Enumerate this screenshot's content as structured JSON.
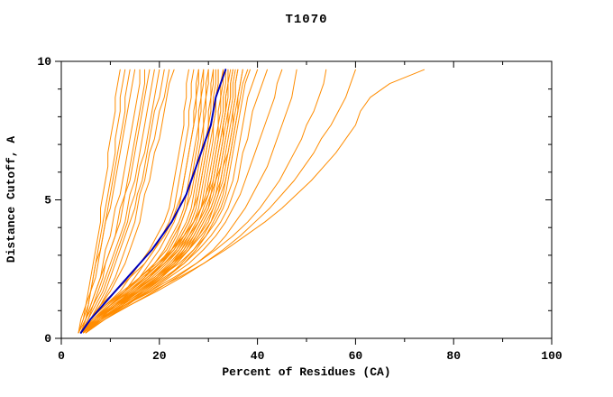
{
  "colors": {
    "background": "#ffffff",
    "frame": "#000000",
    "model": "#ff8c00",
    "highlight": "#0000bb"
  },
  "axes": {
    "x": {
      "label": "Percent of Residues (CA)",
      "min": 0,
      "max": 100,
      "major_ticks": [
        0,
        20,
        40,
        60,
        80,
        100
      ],
      "minor_step": 10
    },
    "y": {
      "label": "Distance Cutoff, A",
      "min": 0,
      "max": 10,
      "major_ticks": [
        0,
        5,
        10
      ],
      "minor_step": 1
    }
  },
  "chart_data": {
    "type": "line",
    "title": "T1070",
    "xlabel": "Percent of Residues (CA)",
    "ylabel": "Distance Cutoff, A",
    "xlim": [
      0,
      100
    ],
    "ylim": [
      0,
      10
    ],
    "grid": false,
    "legend": "none",
    "description": "CASP-style cumulative distance plot: many orange model curves, one dark blue highlighted curve",
    "y_values": [
      0.2,
      0.7,
      1.2,
      1.7,
      2.2,
      2.7,
      3.2,
      3.7,
      4.2,
      4.7,
      5.2,
      5.7,
      6.2,
      6.7,
      7.2,
      7.7,
      8.2,
      8.7,
      9.2,
      9.7
    ],
    "highlight_x": [
      4,
      6,
      8.5,
      11,
      13.5,
      16,
      18.5,
      20.5,
      22.5,
      24,
      25.5,
      26.5,
      27.5,
      28.5,
      29.5,
      30.5,
      31,
      31.5,
      32.5,
      33.5
    ],
    "models_x": [
      [
        3.5,
        4.5,
        5,
        5.5,
        6,
        6.5,
        7,
        7.5,
        8,
        8,
        8.5,
        9,
        9.5,
        9.5,
        10,
        10.5,
        11,
        11,
        11.5,
        12
      ],
      [
        4,
        5,
        5.5,
        6,
        7,
        7.5,
        8,
        8.5,
        9,
        9.5,
        10,
        10.5,
        11,
        11.5,
        12,
        12.5,
        13,
        13,
        13.5,
        14
      ],
      [
        3.5,
        4,
        5,
        6,
        6.5,
        7,
        8,
        8.5,
        9,
        10,
        10.5,
        11,
        11.5,
        12,
        12.5,
        13,
        13.5,
        14,
        14.5,
        15
      ],
      [
        4,
        5,
        6,
        7,
        8,
        8.5,
        9,
        10,
        10.5,
        11,
        12,
        12.5,
        13,
        13.5,
        14,
        14.5,
        15,
        15.5,
        16,
        16
      ],
      [
        4,
        5.5,
        6.5,
        7.5,
        8.5,
        9,
        10,
        11,
        11.5,
        12,
        13,
        13.5,
        14,
        14.5,
        15,
        15.5,
        16,
        16.5,
        17,
        17
      ],
      [
        3.5,
        5,
        6,
        7,
        8,
        9,
        10,
        11,
        12,
        12.5,
        13,
        14,
        14.5,
        15,
        15.5,
        16,
        16.5,
        17,
        17.5,
        18
      ],
      [
        4,
        5,
        6.5,
        8,
        9,
        10,
        11,
        12,
        13,
        13.5,
        14,
        15,
        15.5,
        16,
        16.5,
        17,
        17.5,
        18,
        18.5,
        19
      ],
      [
        4,
        5.5,
        7,
        8.5,
        9.5,
        10.5,
        11.5,
        12.5,
        13.5,
        14,
        15,
        15.5,
        16,
        17,
        17.5,
        18,
        18.5,
        19,
        19.5,
        20
      ],
      [
        4.5,
        6,
        7.5,
        9,
        10,
        11,
        12,
        13,
        14,
        15,
        15.5,
        16.5,
        17,
        17.5,
        18,
        18.5,
        19,
        20,
        20.5,
        21
      ],
      [
        4,
        6,
        8,
        9.5,
        11,
        12,
        13,
        14,
        15,
        15.5,
        16,
        17,
        17.5,
        18,
        19,
        19.5,
        20,
        21,
        21.5,
        22
      ],
      [
        3.5,
        4.5,
        5.5,
        6,
        6.5,
        7,
        7.5,
        8,
        8.5,
        9,
        9.5,
        10,
        10.5,
        11,
        11,
        11.5,
        12,
        12,
        12.5,
        13
      ],
      [
        4,
        6,
        8,
        10,
        11.5,
        13,
        14,
        15,
        16,
        16.5,
        17,
        18,
        18.5,
        19,
        20,
        20.5,
        21,
        21.5,
        22,
        23
      ],
      [
        4,
        6,
        9,
        12,
        14,
        16,
        18,
        19.5,
        21,
        22,
        22.5,
        23,
        23.5,
        24,
        24.5,
        25,
        25,
        25.5,
        25.5,
        26
      ],
      [
        4,
        7,
        10,
        13,
        15,
        17,
        19,
        20.5,
        22,
        23,
        23.5,
        24,
        24.5,
        25,
        25.5,
        26,
        26,
        26.5,
        26.5,
        27
      ],
      [
        4.5,
        7,
        10,
        13,
        16,
        18,
        20,
        21.5,
        23,
        24,
        24.5,
        25,
        25.5,
        26,
        26.5,
        27,
        27,
        27.5,
        27.5,
        28
      ],
      [
        4,
        6,
        8,
        11,
        14,
        17,
        19,
        21,
        22.5,
        23.5,
        24.5,
        25,
        25.5,
        26,
        26.5,
        27,
        27.5,
        27.5,
        28,
        28
      ],
      [
        4,
        7,
        10,
        14,
        17,
        19,
        21,
        22.5,
        24,
        25,
        25.5,
        26,
        26.5,
        27,
        27.5,
        28,
        28,
        28.5,
        28.5,
        29
      ],
      [
        5,
        8,
        11,
        14,
        17,
        20,
        22,
        23.5,
        24.5,
        25.5,
        26,
        26.5,
        27,
        27.5,
        28,
        28,
        28.5,
        28.5,
        29,
        29
      ],
      [
        4,
        6,
        9,
        13,
        16,
        19,
        21.5,
        23,
        24.5,
        25.5,
        26.5,
        27,
        27.5,
        28,
        28.5,
        29,
        29,
        29.5,
        29.5,
        30
      ],
      [
        4.5,
        7.5,
        11,
        14.5,
        18,
        20.5,
        22.5,
        24,
        25.5,
        26.5,
        27,
        27.5,
        28,
        28.5,
        29,
        29,
        29.5,
        29.5,
        30,
        30
      ],
      [
        4,
        7,
        10,
        14,
        17.5,
        20.5,
        23,
        24.5,
        26,
        27,
        27.5,
        28,
        28.5,
        29,
        29.5,
        30,
        30,
        30.5,
        30.5,
        31
      ],
      [
        5,
        8,
        12,
        15,
        18,
        21,
        23.5,
        25,
        26.5,
        27.5,
        28,
        28.5,
        29,
        29.5,
        30,
        30,
        30.5,
        30.5,
        31,
        31
      ],
      [
        4,
        6.5,
        10,
        13.5,
        17,
        20,
        22.5,
        24.5,
        26,
        27,
        28,
        28.5,
        29,
        29.5,
        30,
        30.5,
        31,
        31,
        31.5,
        31.5
      ],
      [
        4,
        7,
        11,
        15,
        18.5,
        21.5,
        24,
        25.5,
        27,
        28,
        28.5,
        29,
        29.5,
        30,
        30.5,
        31,
        31.5,
        31.5,
        32,
        32
      ],
      [
        4.5,
        8,
        12,
        16,
        19.5,
        22.5,
        24.5,
        26,
        27.5,
        28.5,
        29,
        29.5,
        30,
        30.5,
        31,
        31,
        31.5,
        31.5,
        32,
        32
      ],
      [
        4,
        7,
        10.5,
        14.5,
        18,
        21,
        23.5,
        25.5,
        27,
        28.5,
        29.5,
        30,
        30.5,
        31,
        31.5,
        32,
        32,
        32.5,
        32.5,
        33
      ],
      [
        5,
        8.5,
        12.5,
        16.5,
        20,
        23,
        25,
        26.5,
        28,
        29,
        30,
        30.5,
        31,
        31.5,
        32,
        32,
        32.5,
        32.5,
        33,
        33
      ],
      [
        4,
        6.5,
        9.5,
        13,
        16.5,
        20,
        23,
        25,
        27,
        28.5,
        29.5,
        30.5,
        31,
        31.5,
        32,
        32.5,
        33,
        33,
        33.5,
        33.5
      ],
      [
        4,
        7,
        11,
        15,
        19,
        22,
        24.5,
        26.5,
        28,
        29.5,
        30.5,
        31,
        31.5,
        32,
        32.5,
        33,
        33.5,
        33.5,
        34,
        34
      ],
      [
        4.5,
        8,
        12,
        16,
        20,
        23,
        25.5,
        27,
        28.5,
        30,
        30.5,
        31.5,
        32,
        32.5,
        33,
        33,
        33.5,
        33.5,
        34,
        34
      ],
      [
        4,
        6,
        9,
        12.5,
        16,
        19.5,
        22.5,
        25,
        27,
        28.5,
        30,
        31,
        31.5,
        32,
        32.5,
        33,
        33.5,
        34,
        34,
        34.5
      ],
      [
        4,
        7.5,
        11.5,
        15.5,
        19.5,
        22.5,
        25,
        27,
        28.5,
        30,
        31,
        31.5,
        32,
        32.5,
        33,
        33.5,
        34,
        34.5,
        34.5,
        35
      ],
      [
        5,
        9,
        13,
        17,
        20.5,
        23.5,
        26,
        27.5,
        29,
        30.5,
        31.5,
        32,
        32.5,
        33,
        33.5,
        34,
        34,
        34.5,
        34.5,
        35
      ],
      [
        4,
        6.5,
        10,
        14,
        17.5,
        21,
        24,
        26,
        28,
        29.5,
        30.5,
        31.5,
        32.5,
        33,
        33.5,
        34,
        34.5,
        35,
        35,
        35.5
      ],
      [
        4,
        7,
        11,
        15,
        19,
        22.5,
        25.5,
        27.5,
        29,
        30.5,
        31.5,
        32.5,
        33,
        33.5,
        34,
        34.5,
        35,
        35.5,
        35.5,
        36
      ],
      [
        4.5,
        8,
        12.5,
        16.5,
        20.5,
        23.5,
        26,
        28,
        29.5,
        31,
        32,
        32.5,
        33,
        34,
        34.5,
        35,
        35,
        35.5,
        35.5,
        36
      ],
      [
        4,
        7.5,
        11.5,
        16,
        20,
        23.5,
        26,
        28,
        30,
        31,
        32,
        33,
        33.5,
        34,
        34.5,
        35,
        35.5,
        36,
        36.5,
        37
      ],
      [
        5,
        9,
        13.5,
        17.5,
        21.5,
        24.5,
        27,
        29,
        30.5,
        31.5,
        32.5,
        33.5,
        34,
        34.5,
        35,
        35.5,
        36,
        36,
        36.5,
        37
      ],
      [
        4,
        7,
        11,
        15.5,
        19.5,
        23,
        26,
        28.5,
        30.5,
        32,
        33,
        33.5,
        34,
        34.5,
        35,
        35.5,
        36,
        36.5,
        37,
        38
      ],
      [
        4.5,
        8.5,
        13,
        17.5,
        21.5,
        25,
        27.5,
        29.5,
        31,
        32.5,
        33.5,
        34,
        34.5,
        35,
        35.5,
        36,
        36.5,
        37,
        37.5,
        38.5
      ],
      [
        4,
        7,
        11,
        16,
        20,
        24,
        27,
        29.5,
        31.5,
        33,
        34,
        35,
        35.5,
        36,
        36.5,
        37,
        37.5,
        38,
        39,
        40
      ],
      [
        5,
        8,
        12,
        17,
        21,
        25,
        28,
        30.5,
        32.5,
        34,
        35,
        36,
        36.5,
        37,
        38,
        38.5,
        39,
        40,
        41,
        42
      ],
      [
        4,
        8,
        13,
        18,
        22,
        26,
        29,
        31.5,
        33.5,
        35,
        36.5,
        37.5,
        38.5,
        39.5,
        40.5,
        41.5,
        42.5,
        43.5,
        44,
        45
      ],
      [
        5,
        9,
        14,
        19,
        23.5,
        27.5,
        31,
        33.5,
        35.5,
        37.5,
        39,
        40.5,
        42,
        43,
        44,
        45,
        46,
        47,
        47.5,
        48
      ],
      [
        4,
        8,
        13,
        18,
        23,
        27.5,
        31.5,
        35,
        38,
        40.5,
        42.5,
        44.5,
        46,
        47.5,
        49,
        50,
        51.5,
        52.5,
        53.5,
        54
      ],
      [
        5,
        9,
        14,
        19.5,
        24.5,
        29,
        33,
        36.5,
        39.5,
        42.5,
        45,
        47.5,
        49.5,
        51.5,
        53,
        55,
        56.5,
        58,
        59,
        60
      ],
      [
        4,
        8,
        13,
        18.5,
        24,
        29,
        33.5,
        37.5,
        41.5,
        45,
        48,
        51,
        53.5,
        56,
        58,
        60,
        61,
        63,
        67,
        74
      ]
    ]
  }
}
